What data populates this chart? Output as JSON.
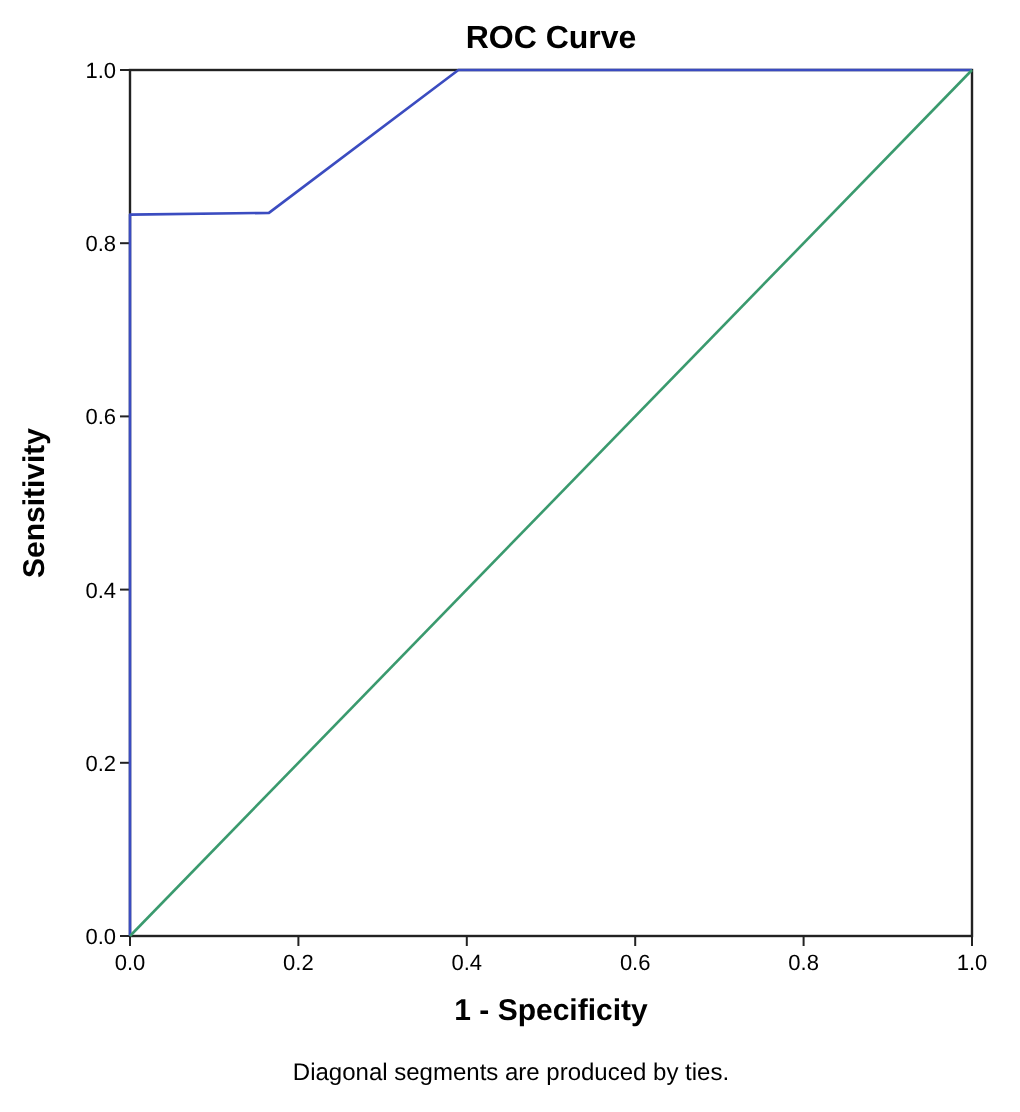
{
  "chart_data": {
    "type": "line",
    "title": "ROC Curve",
    "xlabel": "1 - Specificity",
    "ylabel": "Sensitivity",
    "annotations": [
      "Diagonal segments are produced by ties."
    ],
    "xlim": [
      0,
      1
    ],
    "ylim": [
      0,
      1
    ],
    "xticks": [
      {
        "value": 0,
        "label": "0.0"
      },
      {
        "value": 0.2,
        "label": "0.2"
      },
      {
        "value": 0.4,
        "label": "0.4"
      },
      {
        "value": 0.6,
        "label": "0.6"
      },
      {
        "value": 0.8,
        "label": "0.8"
      },
      {
        "value": 1,
        "label": "1.0"
      }
    ],
    "yticks": [
      {
        "value": 0,
        "label": "0.0"
      },
      {
        "value": 0.2,
        "label": "0.2"
      },
      {
        "value": 0.4,
        "label": "0.4"
      },
      {
        "value": 0.6,
        "label": "0.6"
      },
      {
        "value": 0.8,
        "label": "0.8"
      },
      {
        "value": 1,
        "label": "1.0"
      }
    ],
    "series": [
      {
        "color": "#3b4cc0",
        "x": [
          0,
          0,
          0.165,
          0.39,
          1
        ],
        "values": [
          0,
          0.833,
          0.835,
          1,
          1
        ]
      },
      {
        "color": "#3a9a6e",
        "x": [
          0,
          1
        ],
        "values": [
          0,
          1
        ]
      }
    ],
    "grid": false,
    "marker": "none",
    "line_style": "solid"
  }
}
